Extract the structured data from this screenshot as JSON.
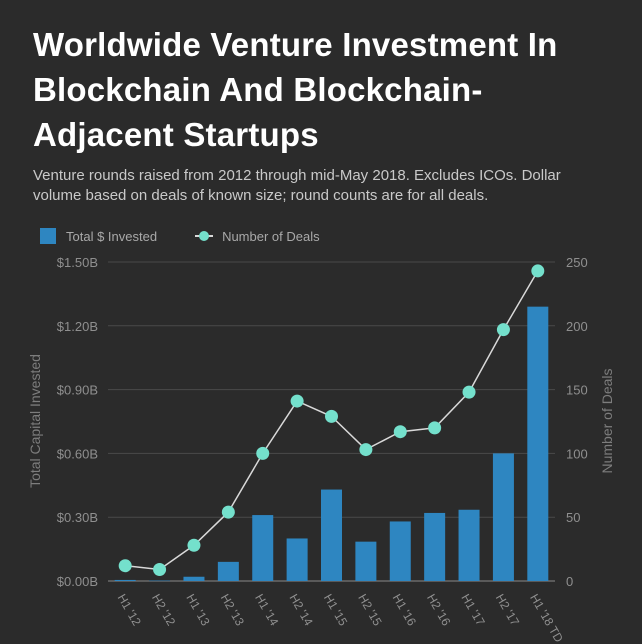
{
  "title": "Worldwide Venture Investment In Blockchain And Blockchain-Adjacent Startups",
  "subtitle": "Venture rounds raised from 2012 through mid-May 2018. Excludes ICOs. Dollar volume based on deals of known size; round counts are for all deals.",
  "colors": {
    "bar": "#2e86c1",
    "dot": "#74e0cc",
    "line": "#d9d9d9",
    "grid": "#4a4a4a",
    "tick": "#8f8f8f"
  },
  "chart_data": {
    "type": "bar",
    "categories": [
      "H1 '12",
      "H2 '12",
      "H1 '13",
      "H2 '13",
      "H1 '14",
      "H2 '14",
      "H1 '15",
      "H2 '15",
      "H1 '16",
      "H2 '16",
      "H1 '17",
      "H2 '17",
      "H1 '18 TD"
    ],
    "series": [
      {
        "name": "Total $ Invested",
        "type": "bar",
        "axis": "left",
        "values": [
          0.005,
          0.002,
          0.02,
          0.09,
          0.31,
          0.2,
          0.43,
          0.185,
          0.28,
          0.32,
          0.335,
          0.6,
          1.29
        ]
      },
      {
        "name": "Number of Deals",
        "type": "line",
        "axis": "right",
        "values": [
          12,
          9,
          28,
          54,
          100,
          141,
          129,
          103,
          117,
          120,
          148,
          197,
          243
        ]
      }
    ],
    "ylabel": "Total Capital Invested",
    "y2label": "Number of Deals",
    "ylim": [
      0,
      1.5
    ],
    "y2lim": [
      0,
      250
    ],
    "yticks": [
      "$0.00B",
      "$0.30B",
      "$0.60B",
      "$0.90B",
      "$1.20B",
      "$1.50B"
    ],
    "y2ticks": [
      "0",
      "50",
      "100",
      "150",
      "200",
      "250"
    ],
    "grid": true,
    "legend_position": "top-left"
  }
}
